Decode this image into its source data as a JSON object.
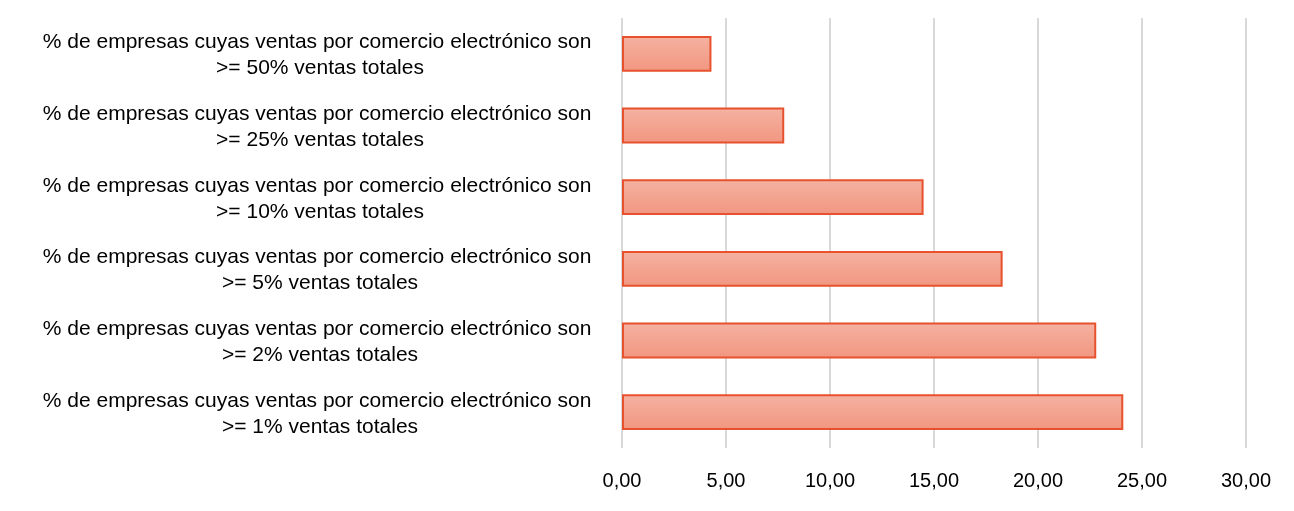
{
  "chart_data": {
    "type": "bar",
    "orientation": "horizontal",
    "categories": [
      "% de empresas cuyas ventas por comercio electrónico son >= 50% ventas totales",
      "% de empresas cuyas ventas por comercio electrónico son >= 25% ventas totales",
      "% de empresas cuyas ventas por comercio electrónico son >= 10% ventas totales",
      "% de empresas cuyas ventas por comercio electrónico son >= 5% ventas totales",
      "% de empresas cuyas ventas por comercio electrónico son >= 2% ventas totales",
      "% de empresas cuyas ventas por comercio electrónico son >= 1% ventas totales"
    ],
    "values": [
      4.3,
      7.8,
      14.5,
      18.3,
      22.8,
      24.1
    ],
    "color": "#e8512d",
    "xlim": [
      0,
      30
    ],
    "xticks": [
      {
        "value": 0,
        "label": "0,00"
      },
      {
        "value": 5,
        "label": "5,00"
      },
      {
        "value": 10,
        "label": "10,00"
      },
      {
        "value": 15,
        "label": "15,00"
      },
      {
        "value": 20,
        "label": "20,00"
      },
      {
        "value": 25,
        "label": "25,00"
      },
      {
        "value": 30,
        "label": "30,00"
      }
    ],
    "grid": "x"
  }
}
